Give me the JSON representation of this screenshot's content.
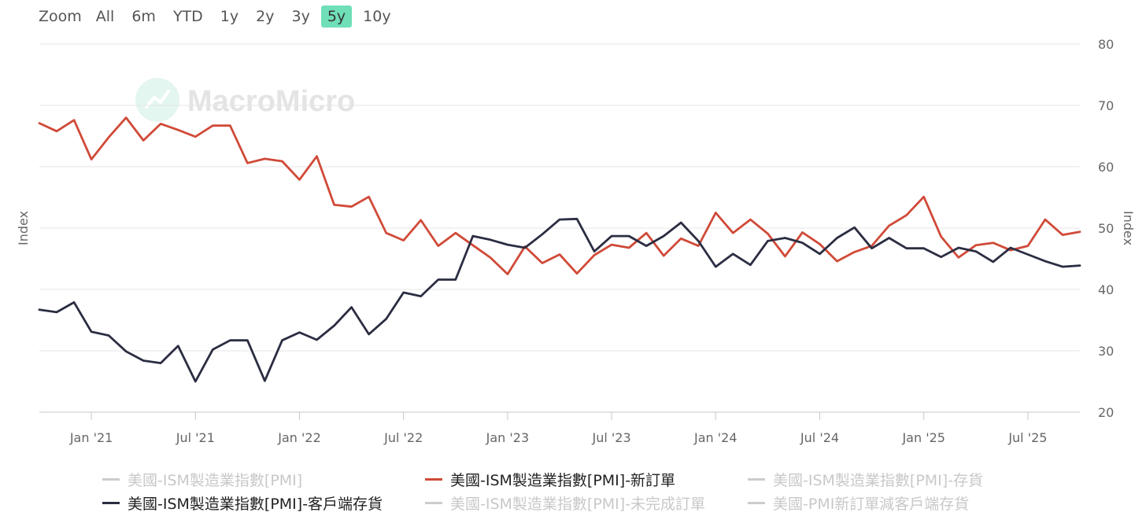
{
  "zoom": {
    "label": "Zoom",
    "buttons": [
      "All",
      "6m",
      "YTD",
      "1y",
      "2y",
      "3y",
      "5y",
      "10y"
    ],
    "active": "5y"
  },
  "watermark": "MacroMicro",
  "colors": {
    "new_orders": "#d04a38",
    "customer_inventories": "#2b2d42",
    "grid": "#e6e6e6",
    "axis_text": "#666666",
    "zoom_active": "#6fdfb8"
  },
  "legend": [
    {
      "label": "美國-ISM製造業指數[PMI]",
      "visible": false
    },
    {
      "label": "美國-ISM製造業指數[PMI]-新訂單",
      "visible": true,
      "color": "#d04a38"
    },
    {
      "label": "美國-ISM製造業指數[PMI]-存貨",
      "visible": false
    },
    {
      "label": "美國-ISM製造業指數[PMI]-客戶端存貨",
      "visible": true,
      "color": "#2b2d42"
    },
    {
      "label": "美國-ISM製造業指數[PMI]-未完成訂單",
      "visible": false
    },
    {
      "label": "美國-PMI新訂單減客戶端存貨",
      "visible": false
    }
  ],
  "chart_data": {
    "type": "line",
    "ylabel_left": "Index",
    "ylabel_right": "Index",
    "ylim": [
      20,
      80
    ],
    "yticks": [
      20,
      30,
      40,
      50,
      60,
      70,
      80
    ],
    "xticks": [
      {
        "label": "Jan '21",
        "date": "2021-01"
      },
      {
        "label": "Jul '21",
        "date": "2021-07"
      },
      {
        "label": "Jan '22",
        "date": "2022-01"
      },
      {
        "label": "Jul '22",
        "date": "2022-07"
      },
      {
        "label": "Jan '23",
        "date": "2023-01"
      },
      {
        "label": "Jul '23",
        "date": "2023-07"
      },
      {
        "label": "Jan '24",
        "date": "2024-01"
      },
      {
        "label": "Jul '24",
        "date": "2024-07"
      },
      {
        "label": "Jan '25",
        "date": "2025-01"
      },
      {
        "label": "Jul '25",
        "date": "2025-07"
      }
    ],
    "x_range": [
      "2020-10",
      "2025-10"
    ],
    "grid": true,
    "x": [
      "2020-10",
      "2020-11",
      "2020-12",
      "2021-01",
      "2021-02",
      "2021-03",
      "2021-04",
      "2021-05",
      "2021-06",
      "2021-07",
      "2021-08",
      "2021-09",
      "2021-10",
      "2021-11",
      "2021-12",
      "2022-01",
      "2022-02",
      "2022-03",
      "2022-04",
      "2022-05",
      "2022-06",
      "2022-07",
      "2022-08",
      "2022-09",
      "2022-10",
      "2022-11",
      "2022-12",
      "2023-01",
      "2023-02",
      "2023-03",
      "2023-04",
      "2023-05",
      "2023-06",
      "2023-07",
      "2023-08",
      "2023-09",
      "2023-10",
      "2023-11",
      "2023-12",
      "2024-01",
      "2024-02",
      "2024-03",
      "2024-04",
      "2024-05",
      "2024-06",
      "2024-07",
      "2024-08",
      "2024-09",
      "2024-10",
      "2024-11",
      "2024-12",
      "2025-01",
      "2025-02",
      "2025-03",
      "2025-04",
      "2025-05",
      "2025-06",
      "2025-07",
      "2025-08",
      "2025-09",
      "2025-10"
    ],
    "series": [
      {
        "name": "美國-ISM製造業指數[PMI]-新訂單",
        "color": "#d04a38",
        "values": [
          67.1,
          65.8,
          67.6,
          61.2,
          64.8,
          68.0,
          64.3,
          67.0,
          66.0,
          64.9,
          66.7,
          66.7,
          60.6,
          61.3,
          60.9,
          57.9,
          61.7,
          53.8,
          53.5,
          55.1,
          49.2,
          48.0,
          51.3,
          47.1,
          49.2,
          47.2,
          45.2,
          42.5,
          47.0,
          44.3,
          45.7,
          42.6,
          45.6,
          47.3,
          46.8,
          49.2,
          45.5,
          48.3,
          47.1,
          52.5,
          49.2,
          51.4,
          49.1,
          45.4,
          49.3,
          47.4,
          44.6,
          46.1,
          47.1,
          50.4,
          52.1,
          55.1,
          48.6,
          45.2,
          47.2,
          47.6,
          46.4,
          47.1,
          51.4,
          48.9,
          49.4
        ]
      },
      {
        "name": "美國-ISM製造業指數[PMI]-客戶端存貨",
        "color": "#2b2d42",
        "values": [
          36.7,
          36.3,
          37.9,
          33.1,
          32.5,
          29.9,
          28.4,
          28.0,
          30.8,
          25.0,
          30.2,
          31.7,
          31.7,
          25.1,
          31.7,
          33.0,
          31.8,
          34.1,
          37.1,
          32.7,
          35.2,
          39.5,
          38.9,
          41.6,
          41.6,
          48.7,
          48.1,
          47.3,
          46.8,
          49.0,
          51.4,
          51.5,
          46.2,
          48.7,
          48.7,
          47.1,
          48.7,
          50.9,
          47.9,
          43.7,
          45.8,
          44.0,
          47.9,
          48.4,
          47.6,
          45.8,
          48.4,
          50.1,
          46.7,
          48.4,
          46.7,
          46.7,
          45.3,
          46.8,
          46.2,
          44.5,
          46.8,
          45.7,
          44.6,
          43.7,
          43.9
        ]
      }
    ]
  }
}
